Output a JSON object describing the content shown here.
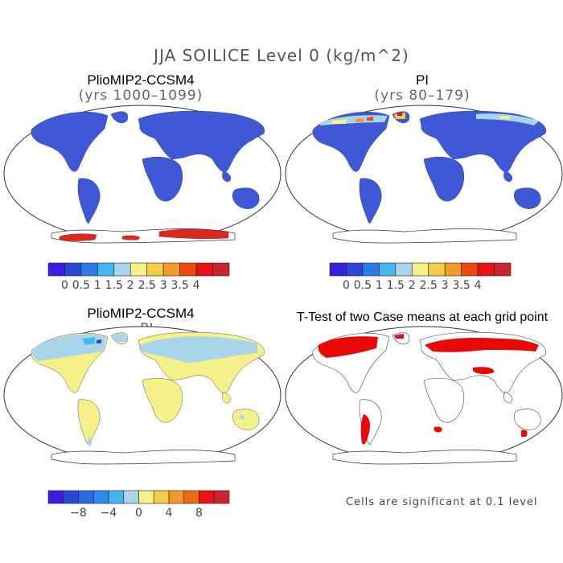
{
  "title": "JJA SOILICE Level 0 (kg/m^2)",
  "panels": [
    {
      "title": "PlioMIP2-CCSM4",
      "subtitle": "(yrs 1000–1099)"
    },
    {
      "title": "PI",
      "subtitle": "(yrs 80–179)"
    },
    {
      "title": "PlioMIP2-CCSM4",
      "subtitle": "– PI"
    },
    {
      "title": "T-Test of two Case means at each grid point",
      "subtitle": ""
    }
  ],
  "colorbars": {
    "absolute": {
      "colors": [
        "#3a1ee0",
        "#2a47d8",
        "#2a7ae8",
        "#45b6ec",
        "#a9d5ea",
        "#f5f08a",
        "#f5cc45",
        "#f39a2a",
        "#ee4a10",
        "#e81414",
        "#c9252d"
      ],
      "labels": [
        "0",
        "0.5",
        "1",
        "1.5",
        "2",
        "2.5",
        "3",
        "3.5",
        "4"
      ]
    },
    "difference": {
      "colors": [
        "#3a1ee0",
        "#2a47d8",
        "#2a6be0",
        "#2a8ae8",
        "#45b6ec",
        "#a9d5ea",
        "#f5f08a",
        "#f5cc45",
        "#f39a2a",
        "#ee6a10",
        "#e81414",
        "#c9252d"
      ],
      "labels": [
        "−8",
        "−4",
        "0",
        "4",
        "8"
      ]
    }
  },
  "significance_note": "Cells are significant at 0.1 level",
  "colors": {
    "land_zero": "#3f59d6",
    "land_diff_small": "#f5f08a",
    "land_diff_neg": "#a9d5ea",
    "ice_high": "#d9281e",
    "significant": "#e80808",
    "coast": "#333333"
  }
}
